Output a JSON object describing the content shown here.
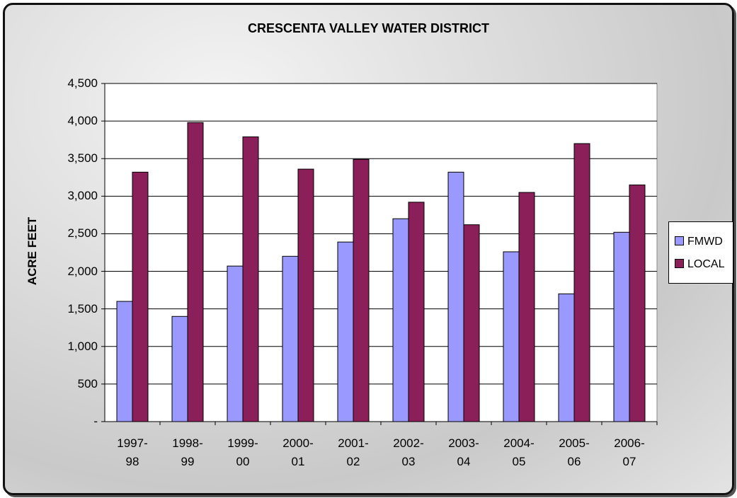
{
  "chart_data": {
    "type": "bar",
    "title": "CRESCENTA VALLEY WATER DISTRICT",
    "y_label": "ACRE FEET",
    "categories": [
      "1997-98",
      "1998-99",
      "1999-00",
      "2000-01",
      "2001-02",
      "2002-03",
      "2003-04",
      "2004-05",
      "2005-06",
      "2006-07"
    ],
    "series": [
      {
        "name": "FMWD",
        "color": "#9999ff",
        "values": [
          1600,
          1400,
          2070,
          2200,
          2390,
          2700,
          3320,
          2260,
          1700,
          2520
        ]
      },
      {
        "name": "LOCAL",
        "color": "#8b1f5a",
        "values": [
          3320,
          3980,
          3790,
          3360,
          3490,
          2920,
          2620,
          3050,
          3700,
          3150
        ]
      }
    ],
    "ylim": [
      0,
      4500
    ],
    "yticks": [
      {
        "value": 0,
        "label": "-"
      },
      500,
      {
        "value": 1000,
        "label": "1,000"
      },
      {
        "value": 1500,
        "label": "1,500"
      },
      {
        "value": 2000,
        "label": "2,000"
      },
      {
        "value": 2500,
        "label": "2,500"
      },
      {
        "value": 3000,
        "label": "3,000"
      },
      {
        "value": 3500,
        "label": "3,500"
      },
      {
        "value": 4000,
        "label": "4,000"
      },
      {
        "value": 4500,
        "label": "4,500"
      }
    ],
    "grid": true,
    "legend": "right"
  }
}
